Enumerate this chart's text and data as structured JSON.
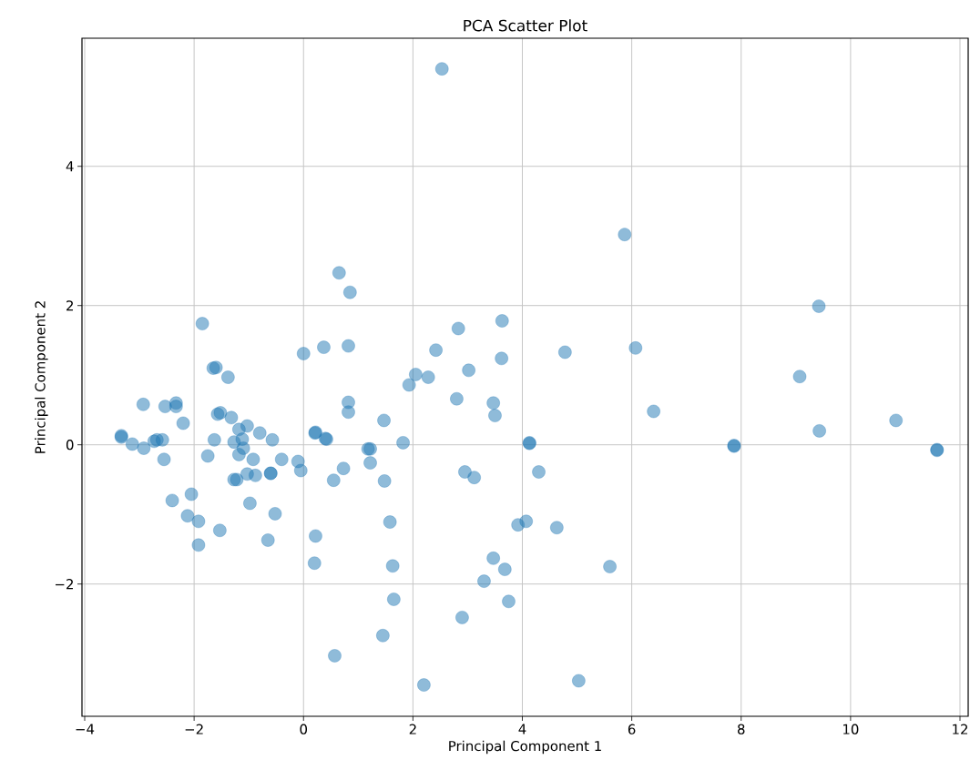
{
  "chart_data": {
    "type": "scatter",
    "title": "PCA Scatter Plot",
    "xlabel": "Principal Component 1",
    "ylabel": "Principal Component 2",
    "xlim": [
      -4.05,
      12.15
    ],
    "ylim": [
      -3.9,
      5.84
    ],
    "xticks": [
      {
        "value": -4,
        "label": "−4"
      },
      {
        "value": -2,
        "label": "−2"
      },
      0,
      2,
      4,
      6,
      8,
      10,
      12
    ],
    "yticks": [
      {
        "value": -2,
        "label": "−2"
      },
      0,
      2,
      4
    ],
    "grid": true,
    "marker": "circle",
    "series": [
      {
        "color": "#1f77b4",
        "x": [
          2.53,
          5.87,
          9.42,
          0.65,
          0.85,
          -1.85,
          3.63,
          2.83,
          2.42,
          0.37,
          0.82,
          4.78,
          6.07,
          0.0,
          3.62,
          3.02,
          -1.65,
          -1.6,
          -1.38,
          9.07,
          2.05,
          2.28,
          1.93,
          2.8,
          3.47,
          0.82,
          3.5,
          0.82,
          6.4,
          10.83,
          9.43,
          -2.93,
          -2.53,
          -2.33,
          -2.33,
          -2.2,
          -1.57,
          -1.52,
          -1.32,
          -1.18,
          -1.03,
          -0.8,
          -0.57,
          -3.33,
          -3.33,
          -3.13,
          -2.92,
          -2.73,
          -2.68,
          -2.58,
          -2.55,
          -1.63,
          -1.75,
          -1.27,
          -1.12,
          -1.1,
          -1.18,
          -0.92,
          -0.4,
          -0.1,
          -0.05,
          0.22,
          0.21,
          0.42,
          0.4,
          0.73,
          0.55,
          -0.6,
          -0.6,
          -1.03,
          -0.88,
          -1.27,
          -1.22,
          -2.4,
          -2.05,
          -0.98,
          -0.52,
          -2.12,
          -1.92,
          -1.53,
          -1.92,
          -0.65,
          0.22,
          0.2,
          1.47,
          1.82,
          4.13,
          4.13,
          1.18,
          1.22,
          1.22,
          1.48,
          2.95,
          3.12,
          4.3,
          1.58,
          3.92,
          4.07,
          4.63,
          1.63,
          3.47,
          3.68,
          3.3,
          1.65,
          3.75,
          2.9,
          1.45,
          0.57,
          2.2,
          5.03,
          5.6,
          7.87,
          7.87,
          11.58,
          11.58
        ],
        "values": [
          5.4,
          3.02,
          1.99,
          2.47,
          2.19,
          1.74,
          1.78,
          1.67,
          1.36,
          1.4,
          1.42,
          1.33,
          1.39,
          1.31,
          1.24,
          1.07,
          1.1,
          1.11,
          0.97,
          0.98,
          1.01,
          0.97,
          0.86,
          0.66,
          0.6,
          0.61,
          0.42,
          0.47,
          0.48,
          0.35,
          0.2,
          0.58,
          0.55,
          0.6,
          0.55,
          0.31,
          0.44,
          0.46,
          0.39,
          0.22,
          0.27,
          0.17,
          0.07,
          0.13,
          0.11,
          0.01,
          -0.05,
          0.05,
          0.07,
          0.07,
          -0.21,
          0.07,
          -0.16,
          0.04,
          0.08,
          -0.05,
          -0.14,
          -0.21,
          -0.21,
          -0.24,
          -0.37,
          0.18,
          0.17,
          0.08,
          0.09,
          -0.34,
          -0.51,
          -0.41,
          -0.41,
          -0.42,
          -0.44,
          -0.5,
          -0.5,
          -0.8,
          -0.71,
          -0.84,
          -0.99,
          -1.02,
          -1.1,
          -1.23,
          -1.44,
          -1.37,
          -1.31,
          -1.7,
          0.35,
          0.03,
          0.03,
          0.02,
          -0.06,
          -0.06,
          -0.26,
          -0.52,
          -0.39,
          -0.47,
          -0.39,
          -1.11,
          -1.15,
          -1.1,
          -1.19,
          -1.74,
          -1.63,
          -1.79,
          -1.96,
          -2.22,
          -2.25,
          -2.48,
          -2.74,
          -3.03,
          -3.45,
          -3.39,
          -1.75,
          -0.01,
          -0.02,
          -0.07,
          -0.08
        ]
      }
    ]
  }
}
